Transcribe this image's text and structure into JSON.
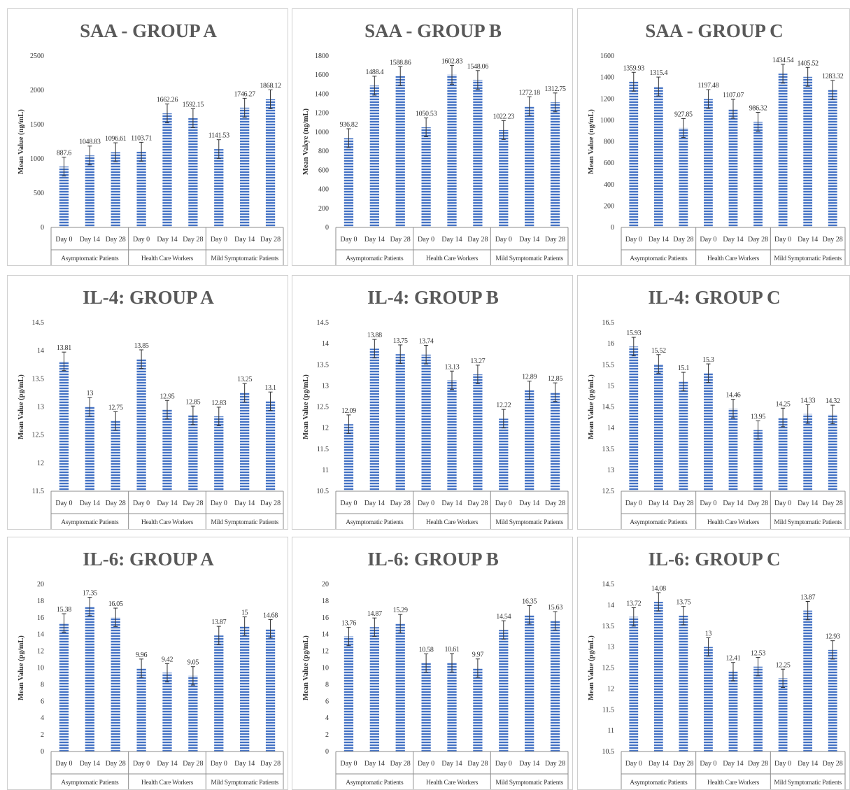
{
  "style": {
    "bar_color": "#4472C4",
    "stripe_color": "#ffffff",
    "axis_color": "#8c8c8c",
    "title_color": "#595959"
  },
  "chart_data": [
    {
      "type": "bar",
      "title": "SAA - GROUP A",
      "ylabel": "Mean Value (ng/mL)",
      "ylim": [
        0,
        2500
      ],
      "ystep": 500,
      "x_ticks": [
        "Day 0",
        "Day 14",
        "Day 28",
        "Day 0",
        "Day 14",
        "Day 28",
        "Day 0",
        "Day 14",
        "Day 28"
      ],
      "groups": [
        "Asymptomatic Patients",
        "Health Care Workers",
        "Mild Symptomatic Patients"
      ],
      "values": [
        887.6,
        1048.83,
        1096.61,
        1103.71,
        1662.26,
        1592.15,
        1141.53,
        1746.27,
        1868.12
      ],
      "labels": [
        "887.6",
        "1048.83",
        "1096.61",
        "1103.71",
        "1662.26",
        "1592.15",
        "1141.53",
        "1746.27",
        "1868.12"
      ]
    },
    {
      "type": "bar",
      "title": "SAA - GROUP B",
      "ylabel": "Mean Vakye (ng/mL)",
      "ylim": [
        0,
        1800
      ],
      "ystep": 200,
      "x_ticks": [
        "Day 0",
        "Day 14",
        "Day 28",
        "Day 0",
        "Day 14",
        "Day 28",
        "Day 0",
        "Day 14",
        "Day 28"
      ],
      "groups": [
        "Asymptomatic Patients",
        "Health Care Workers",
        "Mild Symptomatic Patients"
      ],
      "values": [
        936.82,
        1488.4,
        1588.86,
        1050.53,
        1602.83,
        1548.06,
        1022.23,
        1272.18,
        1312.75
      ],
      "labels": [
        "936.82",
        "1488.4",
        "1588.86",
        "1050.53",
        "1602.83",
        "1548.06",
        "1022.23",
        "1272.18",
        "1312.75"
      ]
    },
    {
      "type": "bar",
      "title": "SAA - GROUP C",
      "ylabel": "Mean Value (ng/mL)",
      "ylim": [
        0,
        1600
      ],
      "ystep": 200,
      "x_ticks": [
        "Day 0",
        "Day 14",
        "Day 28",
        "Day 0",
        "Day 14",
        "Day 28",
        "Day 0",
        "Day 14",
        "Day 28"
      ],
      "groups": [
        "Asymptomatic Patients",
        "Health Care Workers",
        "Mild Symptomatic Patients"
      ],
      "values": [
        1359.93,
        1315.4,
        927.85,
        1197.48,
        1107.07,
        986.32,
        1434.54,
        1405.52,
        1283.32
      ],
      "labels": [
        "1359.93",
        "1315.4",
        "927.85",
        "1197.48",
        "1107.07",
        "986.32",
        "1434.54",
        "1405.52",
        "1283.32"
      ]
    },
    {
      "type": "bar",
      "title": "IL-4: GROUP A",
      "ylabel": "Mean Value (pg/mL)",
      "ylim": [
        11.5,
        14.5
      ],
      "ystep": 0.5,
      "x_ticks": [
        "Day 0",
        "Day 14",
        "Day 28",
        "Day 0",
        "Day 14",
        "Day 28",
        "Day 0",
        "Day 14",
        "Day 28"
      ],
      "groups": [
        "Asymptomatic Patients",
        "Health Care Workers",
        "Mild Symptomatic Patients"
      ],
      "values": [
        13.81,
        13,
        12.75,
        13.85,
        12.95,
        12.85,
        12.83,
        13.25,
        13.1
      ],
      "labels": [
        "13.81",
        "13",
        "12.75",
        "13.85",
        "12.95",
        "12.85",
        "12.83",
        "13.25",
        "13.1"
      ]
    },
    {
      "type": "bar",
      "title": "IL-4: GROUP B",
      "ylabel": "Mean Value (pg/mL)",
      "ylim": [
        10.5,
        14.5
      ],
      "ystep": 0.5,
      "x_ticks": [
        "Day 0",
        "Day 14",
        "Day 28",
        "Day 0",
        "Day 14",
        "Day 28",
        "Day 0",
        "Day 14",
        "Day 28"
      ],
      "groups": [
        "Asymptomatic Patients",
        "Health Care Workers",
        "Mild Symptomatic Patients"
      ],
      "values": [
        12.09,
        13.88,
        13.75,
        13.74,
        13.13,
        13.27,
        12.22,
        12.89,
        12.85
      ],
      "labels": [
        "12.09",
        "13.88",
        "13.75",
        "13.74",
        "13.13",
        "13.27",
        "12.22",
        "12.89",
        "12.85"
      ]
    },
    {
      "type": "bar",
      "title": "IL-4: GROUP C",
      "ylabel": "Mean Value (pg/mL)",
      "ylim": [
        12.5,
        16.5
      ],
      "ystep": 0.5,
      "x_ticks": [
        "Day 0",
        "Day 14",
        "Day 28",
        "Day 0",
        "Day 14",
        "Day 28",
        "Day 0",
        "Day 14",
        "Day 28"
      ],
      "groups": [
        "Asymptomatic Patients",
        "Health Care Workers",
        "Mild Symptomatic Patients"
      ],
      "values": [
        15.93,
        15.52,
        15.1,
        15.3,
        14.46,
        13.95,
        14.25,
        14.33,
        14.32
      ],
      "labels": [
        "15.93",
        "15.52",
        "15.1",
        "15.3",
        "14.46",
        "13.95",
        "14.25",
        "14.33",
        "14.32"
      ]
    },
    {
      "type": "bar",
      "title": "IL-6: GROUP A",
      "ylabel": "Mean Value (pg/mL)",
      "ylim": [
        0,
        20
      ],
      "ystep": 2,
      "x_ticks": [
        "Day 0",
        "Day 14",
        "Day 28",
        "Day 0",
        "Day 14",
        "Day 28",
        "Day 0",
        "Day 14",
        "Day 28"
      ],
      "groups": [
        "Asymptomatic Patients",
        "Health Care Workers",
        "Mild Symptomatic Patients"
      ],
      "values": [
        15.38,
        17.35,
        16.05,
        9.96,
        9.42,
        9.05,
        13.87,
        15,
        14.68
      ],
      "labels": [
        "15.38",
        "17.35",
        "16.05",
        "9.96",
        "9.42",
        "9.05",
        "13.87",
        "15",
        "14.68"
      ]
    },
    {
      "type": "bar",
      "title": "IL-6: GROUP B",
      "ylabel": "Mean Value (pg/mL)",
      "ylim": [
        0,
        20
      ],
      "ystep": 2,
      "x_ticks": [
        "Day 0",
        "Day 14",
        "Day 28",
        "Day 0",
        "Day 14",
        "Day 28",
        "Day 0",
        "Day 14",
        "Day 28"
      ],
      "groups": [
        "Asymptomatic Patients",
        "Health Care Workers",
        "Mild Symptomatic Patients"
      ],
      "values": [
        13.76,
        14.87,
        15.29,
        10.58,
        10.61,
        9.97,
        14.54,
        16.35,
        15.63
      ],
      "labels": [
        "13.76",
        "14.87",
        "15.29",
        "10.58",
        "10.61",
        "9.97",
        "14.54",
        "16.35",
        "15.63"
      ]
    },
    {
      "type": "bar",
      "title": "IL-6: GROUP C",
      "ylabel": "Mean Value (pg/mL)",
      "ylim": [
        10.5,
        14.5
      ],
      "ystep": 0.5,
      "x_ticks": [
        "Day 0",
        "Day 14",
        "Day 28",
        "Day 0",
        "Day 14",
        "Day 28",
        "Day 0",
        "Day 14",
        "Day 28"
      ],
      "groups": [
        "Asymptomatic Patients",
        "Health Care Workers",
        "Mild Symptomatic Patients"
      ],
      "values": [
        13.72,
        14.08,
        13.75,
        13,
        12.41,
        12.53,
        12.25,
        13.87,
        12.93
      ],
      "labels": [
        "13.72",
        "14.08",
        "13.75",
        "13",
        "12.41",
        "12.53",
        "12.25",
        "13.87",
        "12.93"
      ]
    }
  ]
}
